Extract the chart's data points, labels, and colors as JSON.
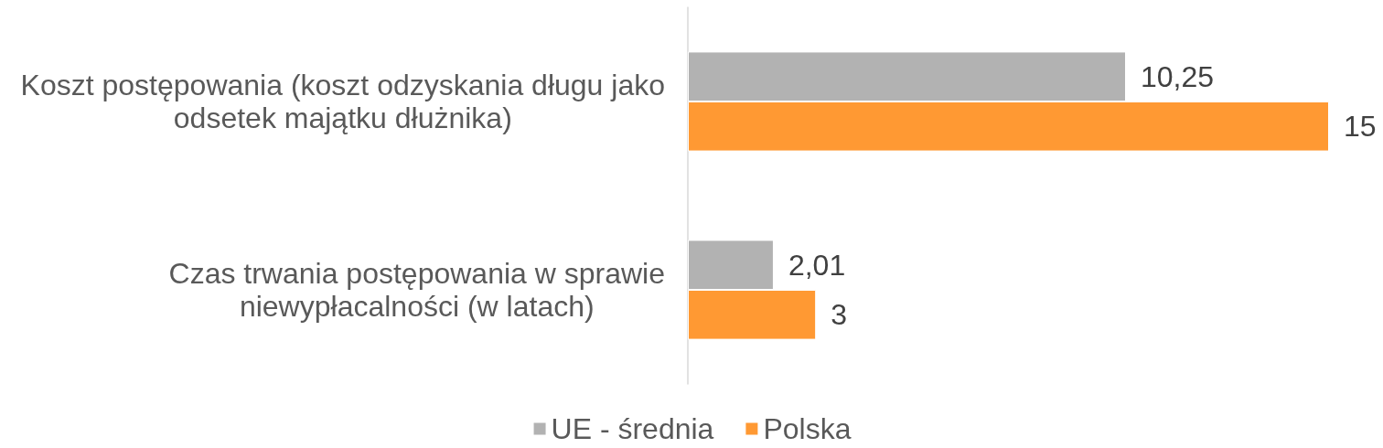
{
  "chart_data": {
    "type": "bar",
    "orientation": "horizontal",
    "categories": [
      "Koszt postępowania (koszt odzyskania długu jako odsetek majątku dłużnika)",
      "Czas trwania postępowania w sprawie niewypłacalności (w latach)"
    ],
    "series": [
      {
        "name": "UE - średnia",
        "color": "#b2b2b2",
        "values": [
          10.25,
          2.01
        ],
        "value_labels": [
          "10,25",
          "2,01"
        ]
      },
      {
        "name": "Polska",
        "color": "#ff9933",
        "values": [
          15,
          3
        ],
        "value_labels": [
          "15",
          "3"
        ]
      }
    ],
    "tick_labels": "y",
    "legend": "bottom"
  }
}
